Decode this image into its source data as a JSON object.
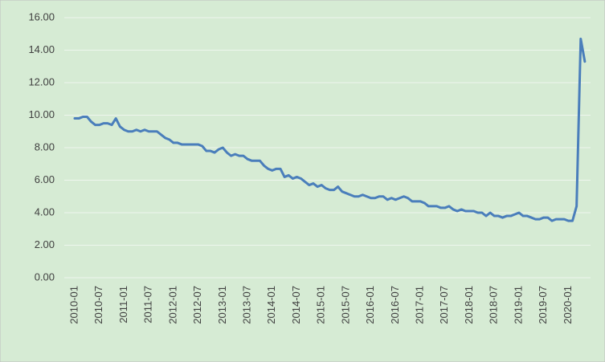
{
  "chart_data": {
    "type": "line",
    "categories": [
      "2010-01",
      null,
      null,
      null,
      null,
      null,
      "2010-07",
      null,
      null,
      null,
      null,
      null,
      "2011-01",
      null,
      null,
      null,
      null,
      null,
      "2011-07",
      null,
      null,
      null,
      null,
      null,
      "2012-01",
      null,
      null,
      null,
      null,
      null,
      "2012-07",
      null,
      null,
      null,
      null,
      null,
      "2013-01",
      null,
      null,
      null,
      null,
      null,
      "2013-07",
      null,
      null,
      null,
      null,
      null,
      "2014-01",
      null,
      null,
      null,
      null,
      null,
      "2014-07",
      null,
      null,
      null,
      null,
      null,
      "2015-01",
      null,
      null,
      null,
      null,
      null,
      "2015-07",
      null,
      null,
      null,
      null,
      null,
      "2016-01",
      null,
      null,
      null,
      null,
      null,
      "2016-07",
      null,
      null,
      null,
      null,
      null,
      "2017-01",
      null,
      null,
      null,
      null,
      null,
      "2017-07",
      null,
      null,
      null,
      null,
      null,
      "2018-01",
      null,
      null,
      null,
      null,
      null,
      "2018-07",
      null,
      null,
      null,
      null,
      null,
      "2019-01",
      null,
      null,
      null,
      null,
      null,
      "2019-07",
      null,
      null,
      null,
      null,
      null,
      "2020-01",
      null,
      null,
      null,
      null
    ],
    "values": [
      9.8,
      9.8,
      9.9,
      9.9,
      9.6,
      9.4,
      9.4,
      9.5,
      9.5,
      9.4,
      9.8,
      9.3,
      9.1,
      9.0,
      9.0,
      9.1,
      9.0,
      9.1,
      9.0,
      9.0,
      9.0,
      8.8,
      8.6,
      8.5,
      8.3,
      8.3,
      8.2,
      8.2,
      8.2,
      8.2,
      8.2,
      8.1,
      7.8,
      7.8,
      7.7,
      7.9,
      8.0,
      7.7,
      7.5,
      7.6,
      7.5,
      7.5,
      7.3,
      7.2,
      7.2,
      7.2,
      6.9,
      6.7,
      6.6,
      6.7,
      6.7,
      6.2,
      6.3,
      6.1,
      6.2,
      6.1,
      5.9,
      5.7,
      5.8,
      5.6,
      5.7,
      5.5,
      5.4,
      5.4,
      5.6,
      5.3,
      5.2,
      5.1,
      5.0,
      5.0,
      5.1,
      5.0,
      4.9,
      4.9,
      5.0,
      5.0,
      4.8,
      4.9,
      4.8,
      4.9,
      5.0,
      4.9,
      4.7,
      4.7,
      4.7,
      4.6,
      4.4,
      4.4,
      4.4,
      4.3,
      4.3,
      4.4,
      4.2,
      4.1,
      4.2,
      4.1,
      4.1,
      4.1,
      4.0,
      4.0,
      3.8,
      4.0,
      3.8,
      3.8,
      3.7,
      3.8,
      3.8,
      3.9,
      4.0,
      3.8,
      3.8,
      3.7,
      3.6,
      3.6,
      3.7,
      3.7,
      3.5,
      3.6,
      3.6,
      3.6,
      3.5,
      3.5,
      4.4,
      14.7,
      13.3
    ],
    "color": "#4a7ebb",
    "ylim": [
      0,
      16
    ],
    "yticks": [
      {
        "value": 0,
        "label": "0.00"
      },
      {
        "value": 2,
        "label": "2.00"
      },
      {
        "value": 4,
        "label": "4.00"
      },
      {
        "value": 6,
        "label": "6.00"
      },
      {
        "value": 8,
        "label": "8.00"
      },
      {
        "value": 10,
        "label": "10.00"
      },
      {
        "value": 12,
        "label": "12.00"
      },
      {
        "value": 14,
        "label": "14.00"
      },
      {
        "value": 16,
        "label": "16.00"
      }
    ],
    "grid": true
  }
}
